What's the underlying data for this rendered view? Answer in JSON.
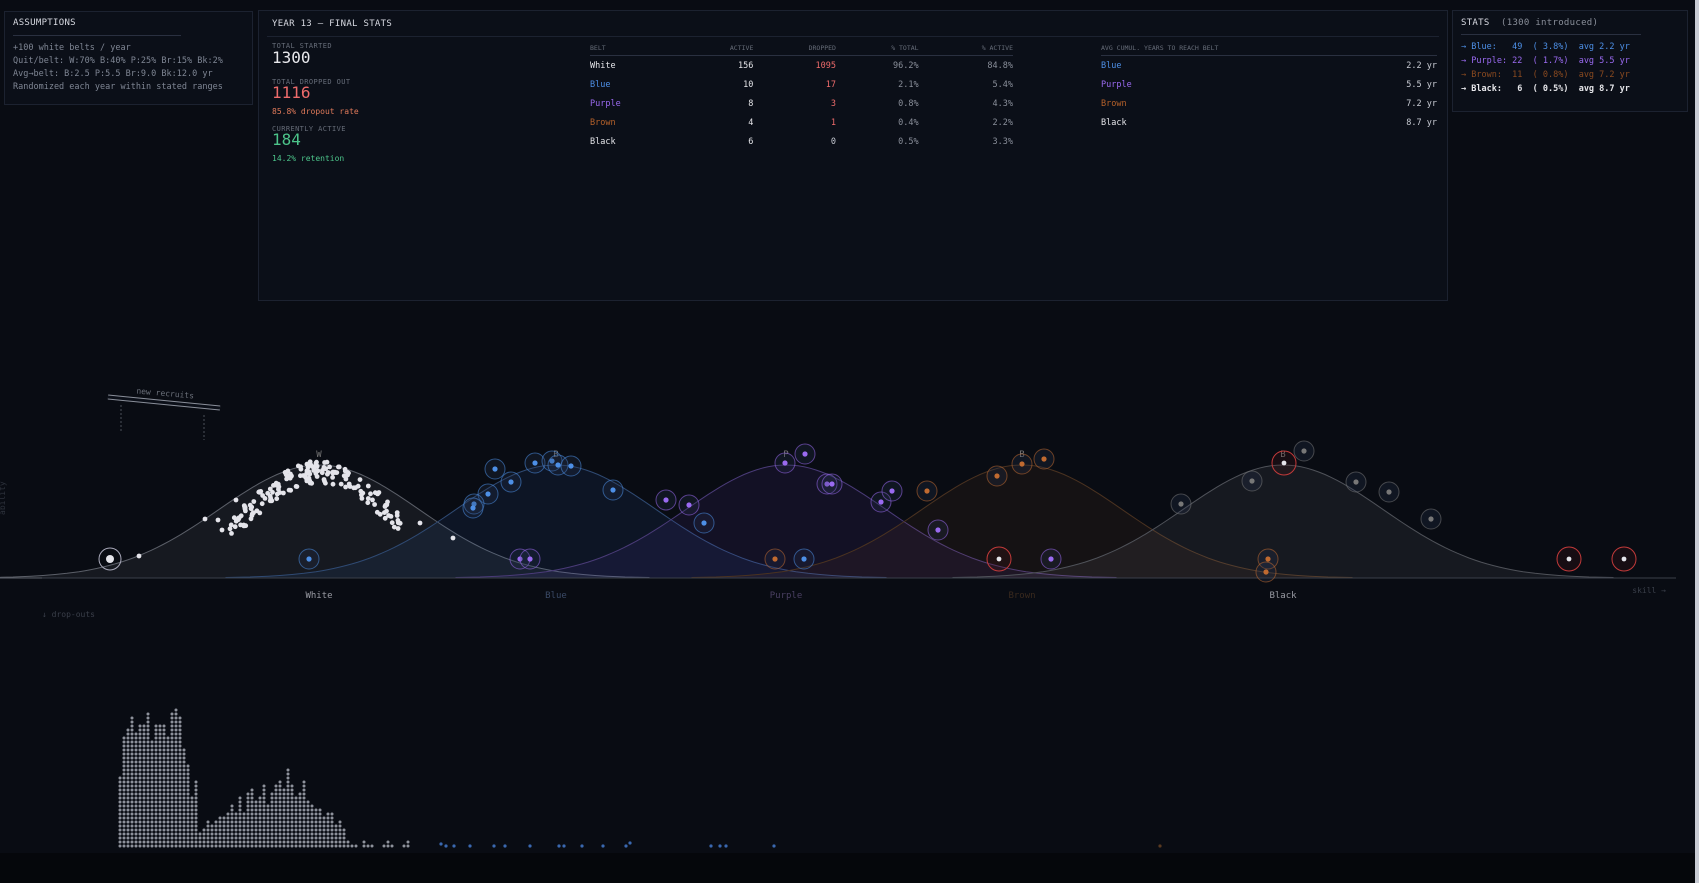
{
  "assumptions": {
    "title": "ASSUMPTIONS",
    "lines": [
      "+100 white belts / year",
      "Quit/belt: W:70% B:40% P:25% Br:15% Bk:2%",
      "Avg→belt: B:2.5 P:5.5 Br:9.0 Bk:12.0 yr",
      "Randomized each year within stated ranges"
    ]
  },
  "final": {
    "title": "YEAR 13  —  FINAL STATS",
    "total_started_label": "TOTAL STARTED",
    "total_started": "1300",
    "total_dropped_label": "TOTAL DROPPED OUT",
    "total_dropped": "1116",
    "dropout_rate": "85.8% dropout rate",
    "currently_active_label": "CURRENTLY ACTIVE",
    "currently_active": "184",
    "retention": "14.2% retention",
    "table_headers": [
      "BELT",
      "ACTIVE",
      "DROPPED",
      "% TOTAL",
      "% ACTIVE"
    ],
    "rows": [
      {
        "belt": "White",
        "active": "156",
        "dropped": "1095",
        "pct_total": "96.2%",
        "pct_active": "84.8%",
        "color": "#e6e6ea"
      },
      {
        "belt": "Blue",
        "active": "10",
        "dropped": "17",
        "pct_total": "2.1%",
        "pct_active": "5.4%",
        "color": "#4d8fe6"
      },
      {
        "belt": "Purple",
        "active": "8",
        "dropped": "3",
        "pct_total": "0.8%",
        "pct_active": "4.3%",
        "color": "#9a6af0"
      },
      {
        "belt": "Brown",
        "active": "4",
        "dropped": "1",
        "pct_total": "0.4%",
        "pct_active": "2.2%",
        "color": "#b5612a"
      },
      {
        "belt": "Black",
        "active": "6",
        "dropped": "0",
        "pct_total": "0.5%",
        "pct_active": "3.3%",
        "color": "#e6e6ea"
      }
    ],
    "years_header": "AVG CUMUL. YEARS TO REACH BELT",
    "years_rows": [
      {
        "belt": "Blue",
        "value": "2.2 yr",
        "color": "#4d8fe6"
      },
      {
        "belt": "Purple",
        "value": "5.5 yr",
        "color": "#9a6af0"
      },
      {
        "belt": "Brown",
        "value": "7.2 yr",
        "color": "#b5612a"
      },
      {
        "belt": "Black",
        "value": "8.7 yr",
        "color": "#e6e6ea"
      }
    ]
  },
  "stats": {
    "title": "STATS",
    "subtitle": "(1300 introduced)",
    "rows": [
      {
        "text": "→ Blue:   49  ( 3.8%)  avg 2.2 yr",
        "color": "#4d8fe6"
      },
      {
        "text": "→ Purple: 22  ( 1.7%)  avg 5.5 yr",
        "color": "#9a6af0"
      },
      {
        "text": "→ Brown:  11  ( 0.8%)  avg 7.2 yr",
        "color": "#8a4a20"
      },
      {
        "text": "→ Black:   6  ( 0.5%)  avg 8.7 yr",
        "color": "#e6e6ea"
      }
    ]
  },
  "viz": {
    "ramp_label": "new recruits",
    "y_axis_label": "ability",
    "x_axis_label": "skill →",
    "drop_label": "↓ drop-outs",
    "belt_labels": [
      {
        "name": "White",
        "color": "#9a9ca4"
      },
      {
        "name": "Blue",
        "color": "#3a4a66"
      },
      {
        "name": "Purple",
        "color": "#4a4062"
      },
      {
        "name": "Brown",
        "color": "#3a2a1e"
      },
      {
        "name": "Black",
        "color": "#9a9ca4"
      }
    ],
    "peak_letters": [
      "W",
      "B",
      "P",
      "B",
      "B"
    ]
  }
}
